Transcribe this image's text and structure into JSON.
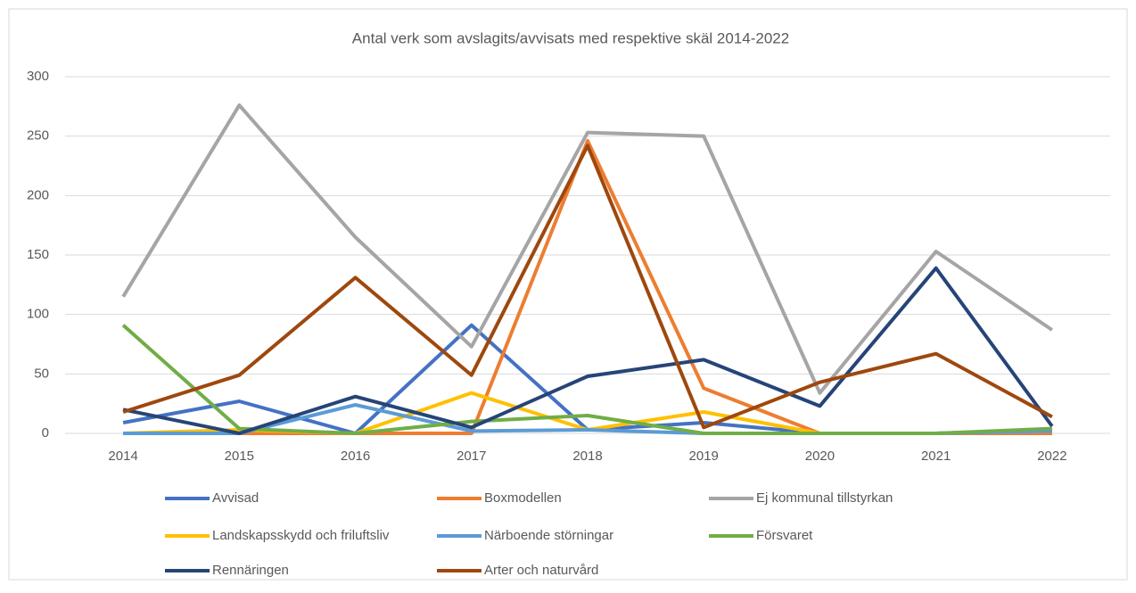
{
  "chart_data": {
    "type": "line",
    "title": "Antal verk som avslagits/avvisats med respektive skäl 2014-2022",
    "categories": [
      "2014",
      "2015",
      "2016",
      "2017",
      "2018",
      "2019",
      "2020",
      "2021",
      "2022"
    ],
    "series": [
      {
        "name": "Avvisad",
        "color": "#4472c4",
        "values": [
          9,
          27,
          0,
          91,
          3,
          9,
          0,
          0,
          3
        ]
      },
      {
        "name": "Boxmodellen",
        "color": "#ed7d31",
        "values": [
          0,
          0,
          0,
          0,
          246,
          38,
          0,
          0,
          0
        ]
      },
      {
        "name": "Ej kommunal tillstyrkan",
        "color": "#a5a5a5",
        "values": [
          115,
          276,
          165,
          73,
          253,
          250,
          34,
          153,
          87
        ]
      },
      {
        "name": "Landskapsskydd och friluftsliv",
        "color": "#ffc000",
        "values": [
          0,
          3,
          0,
          34,
          3,
          18,
          0,
          0,
          2
        ]
      },
      {
        "name": "Närboende störningar",
        "color": "#5b9bd5",
        "values": [
          0,
          0,
          24,
          2,
          3,
          0,
          0,
          0,
          2
        ]
      },
      {
        "name": "Försvaret",
        "color": "#70ad47",
        "values": [
          91,
          4,
          0,
          10,
          15,
          0,
          0,
          0,
          4
        ]
      },
      {
        "name": "Rennäringen",
        "color": "#264478",
        "values": [
          20,
          0,
          31,
          5,
          48,
          62,
          23,
          139,
          6
        ]
      },
      {
        "name": "Arter och naturvård",
        "color": "#9e480e",
        "values": [
          18,
          49,
          131,
          49,
          242,
          5,
          43,
          67,
          14
        ]
      }
    ],
    "ylim": [
      0,
      300
    ],
    "yticks": [
      0,
      50,
      100,
      150,
      200,
      250,
      300
    ],
    "grid": true
  }
}
